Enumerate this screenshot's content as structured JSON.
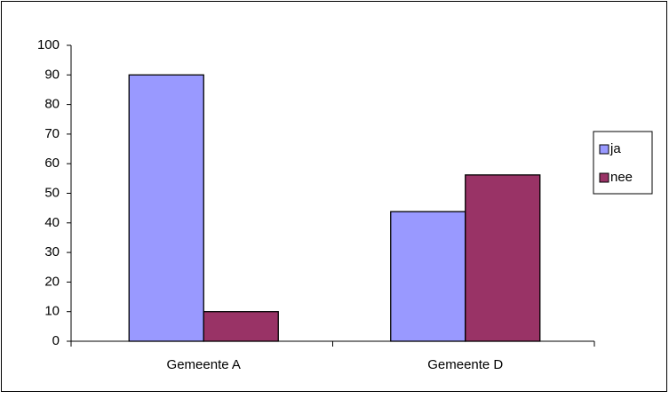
{
  "chart_data": {
    "type": "bar",
    "categories": [
      "Gemeente A",
      "Gemeente D"
    ],
    "series": [
      {
        "name": "ja",
        "color": "#9999ff",
        "values": [
          90,
          43.8
        ]
      },
      {
        "name": "nee",
        "color": "#993366",
        "values": [
          10,
          56.2
        ]
      }
    ],
    "ylim": [
      0,
      100
    ],
    "yticks": [
      0,
      10,
      20,
      30,
      40,
      50,
      60,
      70,
      80,
      90,
      100
    ],
    "grid": false,
    "legend": "right"
  }
}
